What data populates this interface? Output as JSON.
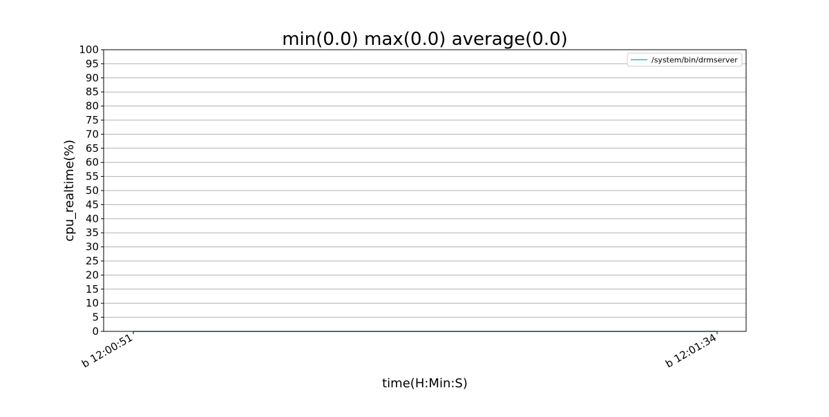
{
  "chart_data": {
    "type": "line",
    "title": "min(0.0) max(0.0) average(0.0)",
    "xlabel": "time(H:Min:S)",
    "ylabel": "cpu_realtime(%)",
    "ylim": [
      0,
      100
    ],
    "yticks": [
      0,
      5,
      10,
      15,
      20,
      25,
      30,
      35,
      40,
      45,
      50,
      55,
      60,
      65,
      70,
      75,
      80,
      85,
      90,
      95,
      100
    ],
    "xticks": [
      "b 12:00:51",
      "b 12:01:34"
    ],
    "grid": "horizontal",
    "legend_position": "top-right",
    "series": [
      {
        "name": "/system/bin/drmserver",
        "color": "#17becf",
        "x": [
          "b 12:00:51",
          "b 12:01:34"
        ],
        "values": [
          0.0,
          0.0
        ]
      }
    ]
  }
}
